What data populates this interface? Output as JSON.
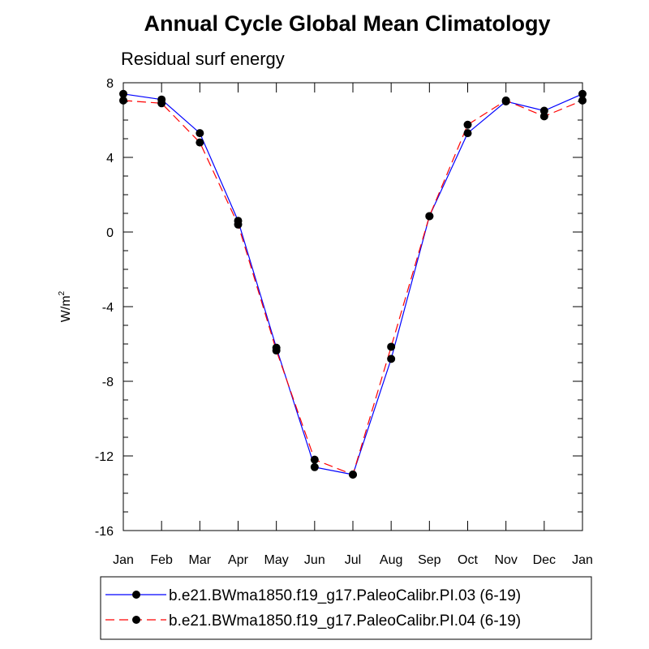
{
  "chart_data": {
    "type": "line",
    "title": "Annual Cycle Global Mean Climatology",
    "subtitle": "Residual surf energy",
    "ylabel": "W/m",
    "ylabel_sup": "2",
    "xlabel": "",
    "categories": [
      "Jan",
      "Feb",
      "Mar",
      "Apr",
      "May",
      "Jun",
      "Jul",
      "Aug",
      "Sep",
      "Oct",
      "Nov",
      "Dec",
      "Jan"
    ],
    "ylim": [
      -16,
      8
    ],
    "yticks": [
      "8",
      "4",
      "0",
      "-4",
      "-8",
      "-12",
      "-16"
    ],
    "ytick_values": [
      8,
      4,
      0,
      -4,
      -8,
      -12,
      -16
    ],
    "grid": false,
    "legend_position": "bottom",
    "series": [
      {
        "name": "b.e21.BWma1850.f19_g17.PaleoCalibr.PI.03 (6-19)",
        "color": "#0000ff",
        "style": "solid",
        "marker": "filled-circle",
        "values": [
          7.4,
          7.1,
          5.3,
          0.6,
          -6.2,
          -12.6,
          -13.0,
          -6.8,
          0.85,
          5.3,
          7.0,
          6.5,
          7.4
        ]
      },
      {
        "name": "b.e21.BWma1850.f19_g17.PaleoCalibr.PI.04 (6-19)",
        "color": "#ff0000",
        "style": "dashed",
        "marker": "filled-circle",
        "values": [
          7.05,
          6.9,
          4.8,
          0.4,
          -6.35,
          -12.2,
          -13.0,
          -6.15,
          0.85,
          5.75,
          7.05,
          6.2,
          7.05
        ]
      }
    ]
  }
}
